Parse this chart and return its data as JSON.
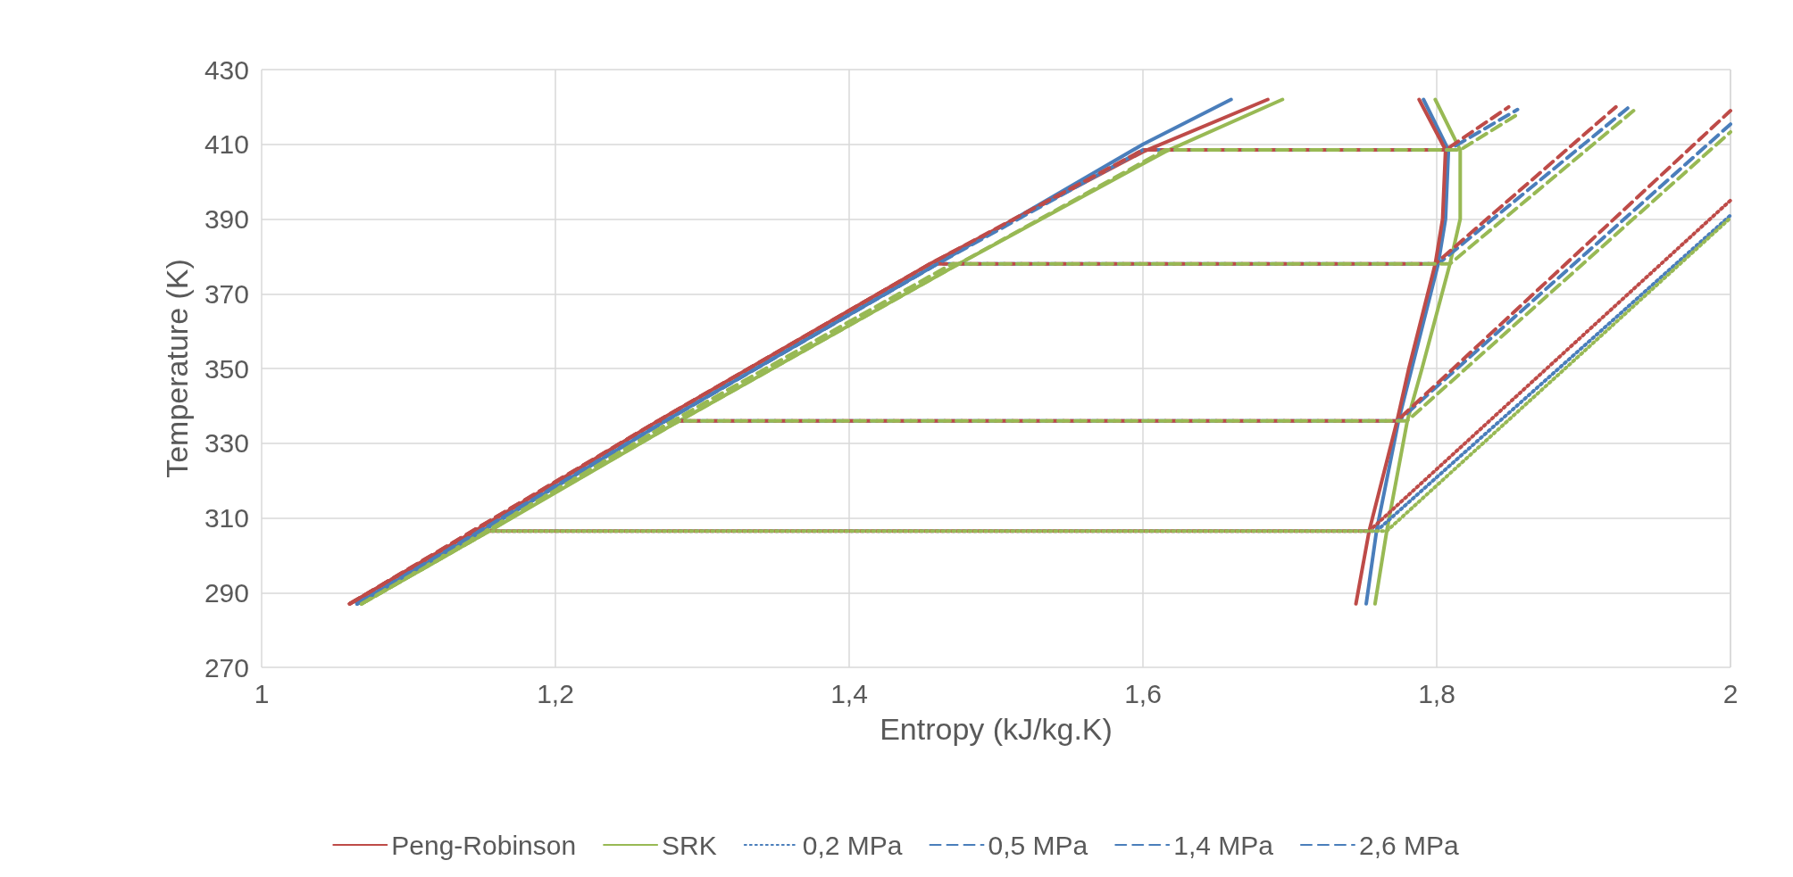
{
  "chart_data": {
    "type": "line",
    "xlabel": "Entropy (kJ/kg.K)",
    "ylabel": "Temperature (K)",
    "xlim": [
      1,
      2
    ],
    "ylim": [
      270,
      430
    ],
    "xticks": [
      1,
      {
        "value": 1.2,
        "label": "1,2"
      },
      {
        "value": 1.4,
        "label": "1,4"
      },
      {
        "value": 1.6,
        "label": "1,6"
      },
      {
        "value": 1.8,
        "label": "1,8"
      },
      2
    ],
    "yticks": [
      270,
      290,
      310,
      330,
      350,
      370,
      390,
      410,
      430
    ],
    "grid": true,
    "legend": "bottom",
    "marker": "none",
    "series": [
      {
        "color": "#4a7ebb",
        "line_style": "solid",
        "x": [
          1.065,
          1.15,
          1.275,
          1.46,
          1.6,
          1.66
        ],
        "values": [
          287,
          306.5,
          336,
          378,
          410,
          422
        ]
      },
      {
        "color": "#4a7ebb",
        "line_style": "solid",
        "x": [
          1.791,
          1.808,
          1.806,
          1.801,
          1.783,
          1.774,
          1.759,
          1.752
        ],
        "values": [
          422,
          408.5,
          390,
          378,
          350,
          336,
          306.5,
          287
        ]
      },
      {
        "name": "Peng-Robinson",
        "color": "#be4b48",
        "line_style": "solid",
        "x": [
          1.06,
          1.145,
          1.27,
          1.455,
          1.6,
          1.685
        ],
        "values": [
          287,
          306.5,
          336,
          378,
          408,
          422
        ]
      },
      {
        "color": "#be4b48",
        "line_style": "solid",
        "x": [
          1.788,
          1.806,
          1.804,
          1.799,
          1.781,
          1.773,
          1.754,
          1.745
        ],
        "values": [
          422,
          408.5,
          390,
          378,
          350,
          336,
          306.5,
          287
        ]
      },
      {
        "name": "SRK",
        "color": "#98b954",
        "line_style": "solid",
        "x": [
          1.068,
          1.155,
          1.28,
          1.47,
          1.615,
          1.695
        ],
        "values": [
          287,
          306.5,
          335,
          377,
          408,
          422
        ]
      },
      {
        "color": "#98b954",
        "line_style": "solid",
        "x": [
          1.799,
          1.816,
          1.816,
          1.809,
          1.79,
          1.78,
          1.766,
          1.758
        ],
        "values": [
          422,
          408.5,
          390,
          378,
          350,
          336,
          306.5,
          287
        ]
      },
      {
        "name": "0,2 MPa",
        "color": "#4a7ebb",
        "line_style": "dotted",
        "x": [
          1.065,
          1.15,
          1.759,
          2
        ],
        "values": [
          287,
          306.5,
          306.5,
          391
        ]
      },
      {
        "color": "#be4b48",
        "line_style": "dotted",
        "x": [
          1.06,
          1.145,
          1.754,
          2
        ],
        "values": [
          287,
          306.5,
          306.5,
          395
        ]
      },
      {
        "color": "#98b954",
        "line_style": "dotted",
        "x": [
          1.068,
          1.155,
          1.766,
          2
        ],
        "values": [
          287,
          306.5,
          306.5,
          390.3
        ]
      },
      {
        "name": "0,5 MPa",
        "color": "#4a7ebb",
        "line_style": "dashed",
        "x": [
          1.065,
          1.15,
          1.275,
          1.774,
          2
        ],
        "values": [
          287,
          306.5,
          336,
          336,
          415.4
        ]
      },
      {
        "color": "#be4b48",
        "line_style": "dashed",
        "x": [
          1.06,
          1.145,
          1.27,
          1.773,
          2
        ],
        "values": [
          287,
          306.5,
          336,
          336,
          419
        ]
      },
      {
        "color": "#98b954",
        "line_style": "dashed",
        "x": [
          1.068,
          1.155,
          1.28,
          1.78,
          2
        ],
        "values": [
          287,
          306.5,
          336,
          336,
          413.3
        ]
      },
      {
        "name": "1,4 MPa",
        "color": "#4a7ebb",
        "line_style": "dashed",
        "x": [
          1.065,
          1.275,
          1.46,
          1.801,
          1.931
        ],
        "values": [
          287,
          336,
          378,
          378,
          420
        ]
      },
      {
        "color": "#be4b48",
        "line_style": "dashed",
        "x": [
          1.06,
          1.27,
          1.455,
          1.799,
          1.922
        ],
        "values": [
          287,
          336,
          378,
          378,
          420
        ]
      },
      {
        "color": "#98b954",
        "line_style": "dashed",
        "x": [
          1.068,
          1.28,
          1.47,
          1.809,
          1.934
        ],
        "values": [
          287,
          336,
          378,
          378,
          419
        ]
      },
      {
        "name": "2,6 MPa",
        "color": "#4a7ebb",
        "line_style": "dashed",
        "x": [
          1.065,
          1.275,
          1.46,
          1.6,
          1.808,
          1.855
        ],
        "values": [
          287,
          336,
          378,
          408.5,
          408.5,
          419.3
        ]
      },
      {
        "color": "#be4b48",
        "line_style": "dashed",
        "x": [
          1.06,
          1.27,
          1.455,
          1.6,
          1.806,
          1.849
        ],
        "values": [
          287,
          336,
          378,
          408.5,
          408.5,
          420
        ]
      },
      {
        "color": "#98b954",
        "line_style": "dashed",
        "x": [
          1.068,
          1.28,
          1.47,
          1.615,
          1.816,
          1.855
        ],
        "values": [
          287,
          335,
          377,
          408.5,
          408.5,
          418
        ]
      }
    ]
  }
}
